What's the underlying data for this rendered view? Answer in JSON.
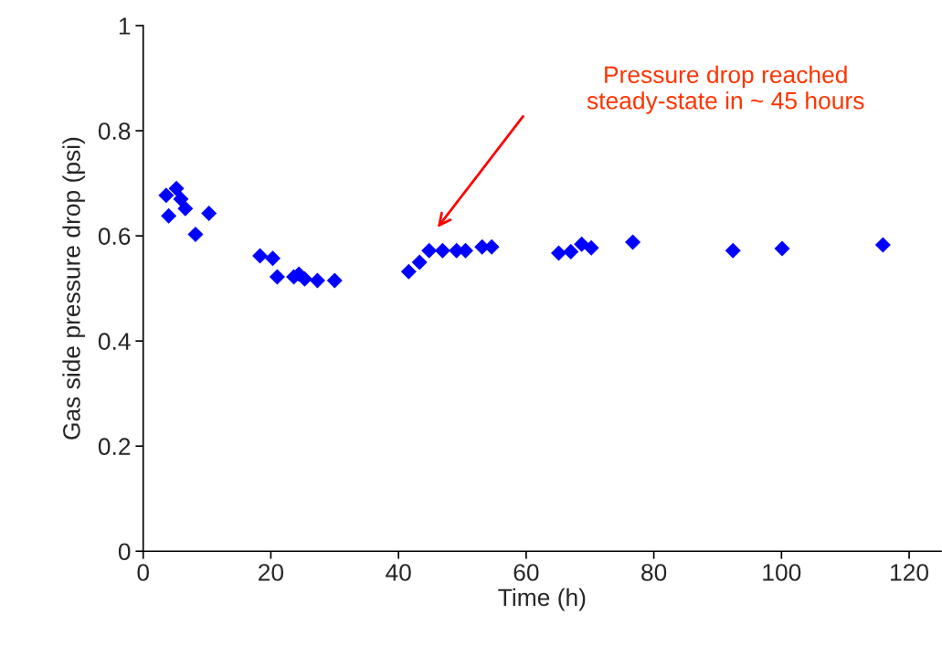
{
  "chart_data": {
    "type": "scatter",
    "xlabel": "Time (h)",
    "ylabel": "Gas side pressure drop (psi)",
    "x": [
      3.6,
      4.0,
      5.2,
      5.9,
      6.6,
      8.2,
      10.3,
      18.3,
      20.3,
      21.0,
      23.6,
      24.4,
      25.3,
      27.3,
      30.0,
      41.6,
      43.3,
      44.8,
      46.9,
      49.1,
      50.5,
      53.1,
      54.6,
      65.1,
      67.0,
      68.7,
      70.2,
      76.7,
      92.4,
      100.1,
      115.9
    ],
    "series": [
      {
        "color": "#0000ff",
        "values": [
          0.677,
          0.638,
          0.69,
          0.67,
          0.652,
          0.603,
          0.643,
          0.562,
          0.557,
          0.522,
          0.522,
          0.527,
          0.518,
          0.515,
          0.515,
          0.532,
          0.55,
          0.572,
          0.572,
          0.572,
          0.572,
          0.579,
          0.579,
          0.567,
          0.57,
          0.584,
          0.577,
          0.588,
          0.572,
          0.576,
          0.583
        ]
      }
    ],
    "marker": "diamond",
    "grid": false,
    "legend": false,
    "xlim": [
      0,
      125
    ],
    "xticks": [
      0,
      20,
      40,
      60,
      80,
      100,
      120
    ],
    "ylim": [
      0,
      1
    ],
    "yticks": [
      0,
      {
        "value": 0.2,
        "label": "0.2"
      },
      {
        "value": 0.4,
        "label": "0.4"
      },
      {
        "value": 0.6,
        "label": "0.6"
      },
      {
        "value": 0.8,
        "label": "0.8"
      },
      1
    ],
    "annotations": [
      "Pressure drop reached\nsteady-state in ~ 45 hours"
    ]
  }
}
